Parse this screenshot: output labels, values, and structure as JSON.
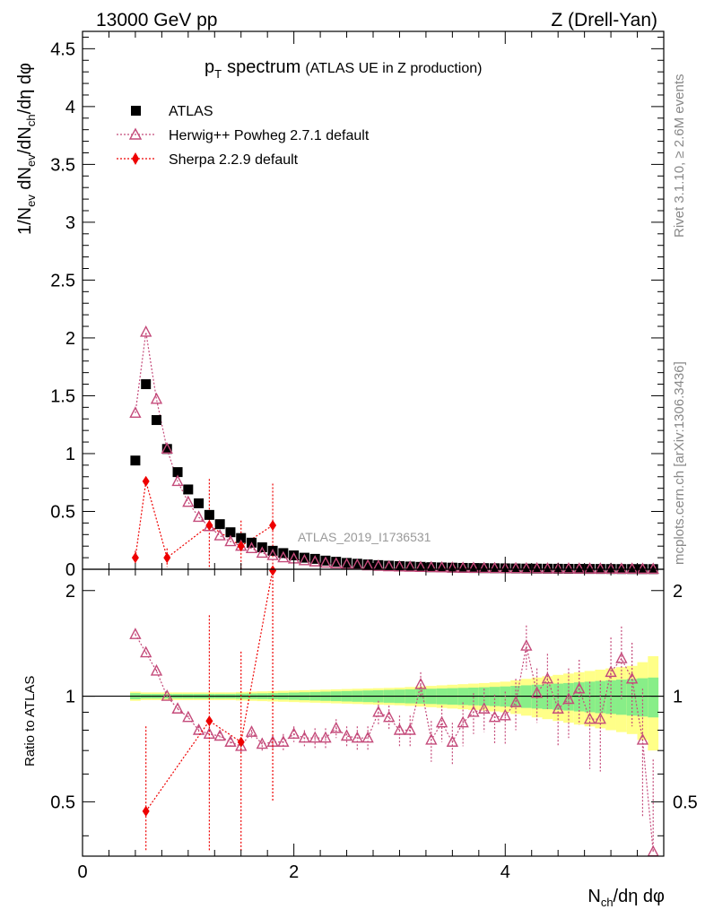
{
  "header": {
    "left": "13000 GeV pp",
    "right": "Z (Drell-Yan)"
  },
  "side_labels": {
    "rivet": "Rivet 3.1.10, ≥ 2.6M events",
    "mcplots": "mcplots.cern.ch [arXiv:1306.3436]"
  },
  "watermark": "ATLAS_2019_I1736531",
  "chart_data": [
    {
      "type": "scatter",
      "title_main": "p",
      "title_sub": "T",
      "title_word": "spectrum",
      "title_paren": "(ATLAS UE in Z production)",
      "ylabel": "1/N_ev dN_ev/dN_ch/dη dφ",
      "xlim": [
        0,
        5.5
      ],
      "ylim": [
        0,
        4.65
      ],
      "yticks": [
        "0",
        "0.5",
        "1",
        "1.5",
        "2",
        "2.5",
        "3",
        "3.5",
        "4",
        "4.5"
      ],
      "ytick_values": [
        0,
        0.5,
        1,
        1.5,
        2,
        2.5,
        3,
        3.5,
        4,
        4.5
      ],
      "legend_position": "top-left",
      "series": [
        {
          "name": "ATLAS",
          "color": "#000000",
          "marker": "square",
          "x": [
            0.5,
            0.6,
            0.7,
            0.8,
            0.9,
            1.0,
            1.1,
            1.2,
            1.3,
            1.4,
            1.5,
            1.6,
            1.7,
            1.8,
            1.9,
            2.0,
            2.1,
            2.2,
            2.3,
            2.4,
            2.5,
            2.6,
            2.7,
            2.8,
            2.9,
            3.0,
            3.1,
            3.2,
            3.3,
            3.4,
            3.5,
            3.6,
            3.7,
            3.8,
            3.9,
            4.0,
            4.1,
            4.2,
            4.3,
            4.4,
            4.5,
            4.6,
            4.7,
            4.8,
            4.9,
            5.0,
            5.1,
            5.2,
            5.3,
            5.4
          ],
          "y": [
            0.94,
            1.6,
            1.29,
            1.04,
            0.84,
            0.69,
            0.57,
            0.47,
            0.39,
            0.32,
            0.27,
            0.23,
            0.19,
            0.16,
            0.14,
            0.12,
            0.1,
            0.09,
            0.075,
            0.065,
            0.055,
            0.048,
            0.042,
            0.036,
            0.031,
            0.027,
            0.024,
            0.021,
            0.018,
            0.016,
            0.014,
            0.012,
            0.011,
            0.01,
            0.009,
            0.008,
            0.007,
            0.006,
            0.0055,
            0.005,
            0.0045,
            0.004,
            0.0035,
            0.003,
            0.0028,
            0.0025,
            0.0022,
            0.002,
            0.0018,
            0.0016
          ]
        },
        {
          "name": "Herwig++ Powheg 2.7.1 default",
          "color": "#c44a7a",
          "marker": "open-triangle",
          "line": "dotted",
          "x": [
            0.5,
            0.6,
            0.7,
            0.8,
            0.9,
            1.0,
            1.1,
            1.2,
            1.3,
            1.4,
            1.5,
            1.6,
            1.7,
            1.8,
            1.9,
            2.0,
            2.1,
            2.2,
            2.3,
            2.4,
            2.5,
            2.6,
            2.7,
            2.8,
            2.9,
            3.0,
            3.1,
            3.2,
            3.3,
            3.4,
            3.5,
            3.6,
            3.7,
            3.8,
            3.9,
            4.0,
            4.1,
            4.2,
            4.3,
            4.4,
            4.5,
            4.6,
            4.7,
            4.8,
            4.9,
            5.0,
            5.1,
            5.2,
            5.3,
            5.4
          ],
          "y": [
            1.35,
            2.05,
            1.47,
            1.04,
            0.76,
            0.58,
            0.45,
            0.37,
            0.29,
            0.24,
            0.2,
            0.18,
            0.14,
            0.12,
            0.1,
            0.09,
            0.075,
            0.065,
            0.055,
            0.048,
            0.042,
            0.036,
            0.031,
            0.027,
            0.023,
            0.021,
            0.019,
            0.017,
            0.015,
            0.013,
            0.011,
            0.01,
            0.009,
            0.008,
            0.007,
            0.006,
            0.006,
            0.005,
            0.005,
            0.004,
            0.004,
            0.004,
            0.003,
            0.003,
            0.003,
            0.002,
            0.002,
            0.002,
            0.001,
            0.001
          ]
        },
        {
          "name": "Sherpa 2.2.9 default",
          "color": "#ee0000",
          "marker": "diamond",
          "line": "dotted",
          "x": [
            0.5,
            0.6,
            0.8,
            1.2,
            1.5,
            1.8
          ],
          "y": [
            0.1,
            0.76,
            0.1,
            0.38,
            0.2,
            0.38
          ],
          "err": [
            0.06,
            0.04,
            0.08,
            0.4,
            0.22,
            0.36
          ]
        }
      ]
    },
    {
      "type": "scatter",
      "ylabel": "Ratio to ATLAS",
      "xlabel": "N_ch/dη dφ",
      "xlim": [
        0,
        5.5
      ],
      "ylim": [
        0.35,
        2.3
      ],
      "yticks": [
        "0.5",
        "1",
        "2"
      ],
      "ytick_values": [
        0.5,
        1,
        2
      ],
      "xticks": [
        "0",
        "2",
        "4"
      ],
      "xtick_values": [
        0,
        2,
        4
      ],
      "bands": {
        "x_edges": [
          0.45,
          0.55,
          0.65,
          0.75,
          0.85,
          0.95,
          1.05,
          1.15,
          1.25,
          1.35,
          1.45,
          1.55,
          1.65,
          1.75,
          1.85,
          1.95,
          2.05,
          2.15,
          2.25,
          2.35,
          2.45,
          2.55,
          2.65,
          2.75,
          2.85,
          2.95,
          3.05,
          3.15,
          3.25,
          3.35,
          3.45,
          3.55,
          3.65,
          3.75,
          3.85,
          3.95,
          4.05,
          4.15,
          4.25,
          4.35,
          4.45,
          4.55,
          4.65,
          4.75,
          4.85,
          4.95,
          5.05,
          5.15,
          5.25,
          5.35,
          5.45
        ],
        "stat_half_width": [
          0.02,
          0.015,
          0.015,
          0.015,
          0.015,
          0.015,
          0.015,
          0.015,
          0.015,
          0.015,
          0.017,
          0.018,
          0.019,
          0.02,
          0.022,
          0.024,
          0.026,
          0.028,
          0.03,
          0.032,
          0.034,
          0.036,
          0.038,
          0.04,
          0.042,
          0.044,
          0.046,
          0.048,
          0.05,
          0.052,
          0.054,
          0.056,
          0.058,
          0.06,
          0.063,
          0.066,
          0.07,
          0.074,
          0.078,
          0.082,
          0.086,
          0.09,
          0.095,
          0.1,
          0.105,
          0.11,
          0.115,
          0.12,
          0.125,
          0.13
        ],
        "total_half_width": [
          0.03,
          0.025,
          0.025,
          0.025,
          0.025,
          0.025,
          0.025,
          0.025,
          0.025,
          0.025,
          0.028,
          0.03,
          0.032,
          0.034,
          0.036,
          0.038,
          0.04,
          0.042,
          0.044,
          0.046,
          0.048,
          0.05,
          0.052,
          0.054,
          0.056,
          0.058,
          0.062,
          0.066,
          0.07,
          0.074,
          0.078,
          0.082,
          0.086,
          0.09,
          0.095,
          0.1,
          0.11,
          0.12,
          0.13,
          0.14,
          0.15,
          0.16,
          0.17,
          0.18,
          0.19,
          0.2,
          0.21,
          0.22,
          0.25,
          0.3
        ]
      },
      "series": [
        {
          "name": "Herwig++ Powheg 2.7.1 default",
          "color": "#c44a7a",
          "x": [
            0.5,
            0.6,
            0.7,
            0.8,
            0.9,
            1.0,
            1.1,
            1.2,
            1.3,
            1.4,
            1.5,
            1.6,
            1.7,
            1.8,
            1.9,
            2.0,
            2.1,
            2.2,
            2.3,
            2.4,
            2.5,
            2.6,
            2.7,
            2.8,
            2.9,
            3.0,
            3.1,
            3.2,
            3.3,
            3.4,
            3.5,
            3.6,
            3.7,
            3.8,
            3.9,
            4.0,
            4.1,
            4.2,
            4.3,
            4.4,
            4.5,
            4.6,
            4.7,
            4.8,
            4.9,
            5.0,
            5.1,
            5.2,
            5.3,
            5.4
          ],
          "y": [
            1.5,
            1.33,
            1.18,
            1.0,
            0.92,
            0.87,
            0.8,
            0.78,
            0.77,
            0.74,
            0.72,
            0.79,
            0.73,
            0.74,
            0.74,
            0.78,
            0.76,
            0.76,
            0.76,
            0.81,
            0.77,
            0.76,
            0.76,
            0.9,
            0.87,
            0.8,
            0.8,
            1.08,
            0.75,
            0.84,
            0.74,
            0.84,
            0.9,
            0.92,
            0.87,
            0.88,
            0.96,
            1.39,
            1.02,
            1.12,
            0.92,
            0.98,
            1.05,
            0.86,
            0.86,
            1.17,
            1.28,
            1.12,
            0.75,
            0.36
          ],
          "err": [
            0.01,
            0.01,
            0.01,
            0.01,
            0.01,
            0.01,
            0.02,
            0.02,
            0.02,
            0.02,
            0.03,
            0.03,
            0.03,
            0.03,
            0.04,
            0.04,
            0.04,
            0.05,
            0.05,
            0.05,
            0.05,
            0.06,
            0.06,
            0.07,
            0.07,
            0.08,
            0.08,
            0.09,
            0.1,
            0.1,
            0.1,
            0.12,
            0.12,
            0.13,
            0.14,
            0.15,
            0.16,
            0.2,
            0.18,
            0.2,
            0.2,
            0.22,
            0.22,
            0.24,
            0.25,
            0.3,
            0.3,
            0.3,
            0.3,
            0.3
          ]
        },
        {
          "name": "Sherpa 2.2.9 default",
          "color": "#ee0000",
          "x": [
            0.6,
            1.2,
            1.5,
            1.8
          ],
          "y": [
            0.47,
            0.85,
            0.74,
            2.3
          ],
          "err": [
            0.35,
            0.85,
            0.6,
            1.8
          ]
        }
      ]
    }
  ]
}
